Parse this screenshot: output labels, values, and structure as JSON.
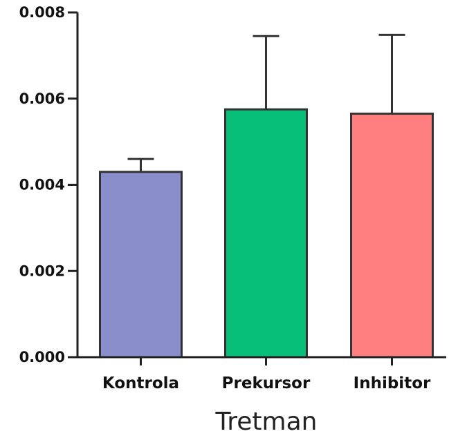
{
  "chart_data": {
    "type": "bar",
    "categories": [
      "Kontrola",
      "Prekursor",
      "Inhibitor"
    ],
    "values": [
      0.0043,
      0.00575,
      0.00565
    ],
    "error_upper": [
      0.0046,
      0.00745,
      0.00748
    ],
    "colors": [
      "#8a8fcc",
      "#07bf79",
      "#ff7f80"
    ],
    "xlabel": "Tretman",
    "ylabel": "",
    "ylim": [
      0,
      0.008
    ],
    "yticks": [
      "0.000",
      "0.002",
      "0.004",
      "0.006",
      "0.008"
    ],
    "ytick_values": [
      0,
      0.002,
      0.004,
      0.006,
      0.008
    ],
    "grid": false,
    "legend": "none"
  }
}
